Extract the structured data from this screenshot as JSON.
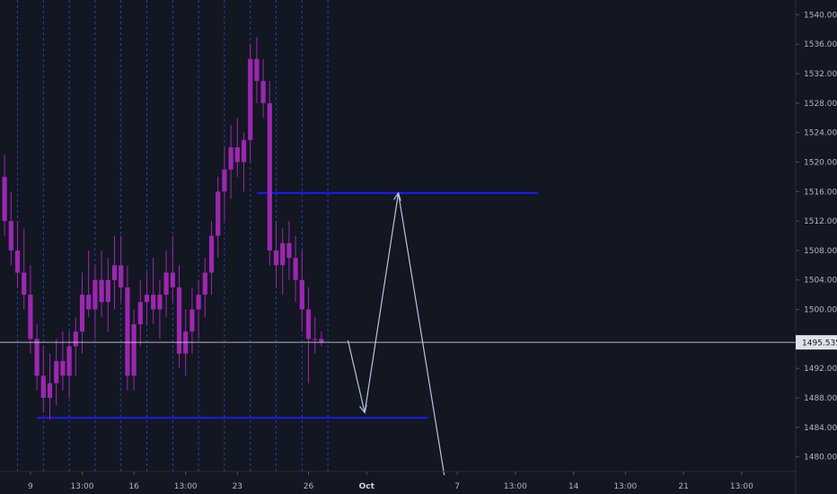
{
  "chart_data": {
    "type": "candlestick",
    "y_axis": {
      "range": [
        1478,
        1542
      ],
      "ticks": [
        "1540.000",
        "1536.000",
        "1532.000",
        "1528.000",
        "1524.000",
        "1520.000",
        "1516.000",
        "1512.000",
        "1508.000",
        "1504.000",
        "1500.000",
        "1496.000",
        "1492.000",
        "1488.000",
        "1484.000",
        "1480.000"
      ],
      "tick_values": [
        1540,
        1536,
        1532,
        1528,
        1524,
        1520,
        1516,
        1512,
        1508,
        1504,
        1500,
        1496,
        1492,
        1488,
        1484,
        1480
      ]
    },
    "x_axis": {
      "ticks": [
        {
          "label": "9",
          "bold": false,
          "slot": 4
        },
        {
          "label": "13:00",
          "bold": false,
          "slot": 12
        },
        {
          "label": "16",
          "bold": false,
          "slot": 20
        },
        {
          "label": "13:00",
          "bold": false,
          "slot": 28
        },
        {
          "label": "23",
          "bold": false,
          "slot": 36
        },
        {
          "label": "26",
          "bold": false,
          "slot": 47
        },
        {
          "label": "Oct",
          "bold": true,
          "slot": 56
        },
        {
          "label": "7",
          "bold": false,
          "slot": 70
        },
        {
          "label": "13:00",
          "bold": false,
          "slot": 79
        },
        {
          "label": "14",
          "bold": false,
          "slot": 88
        },
        {
          "label": "13:00",
          "bold": false,
          "slot": 96
        },
        {
          "label": "21",
          "bold": false,
          "slot": 105
        },
        {
          "label": "13:00",
          "bold": false,
          "slot": 114
        }
      ]
    },
    "current_price": "1495.535",
    "current_price_value": 1495.535,
    "colors": {
      "background": "#131722",
      "candle": "#9c27b0",
      "grid_dashed": "#2962ff",
      "level_line": "#1a1aff",
      "arrow": "#b8c4e0",
      "price_line": "#d1d4dc",
      "axis_text": "#b2b5be"
    },
    "horizontal_levels": [
      {
        "price": 1485.3,
        "from_slot": 5.5,
        "to_slot": 66
      },
      {
        "price": 1515.8,
        "from_slot": 39.5,
        "to_slot": 83
      }
    ],
    "projection_path": [
      {
        "slot": 53.6,
        "price": 1495.8
      },
      {
        "slot": 56.2,
        "price": 1486
      },
      {
        "slot": 61.4,
        "price": 1515.8
      },
      {
        "slot": 68.5,
        "price": 1477.5
      }
    ],
    "dashed_vertical_slots": [
      2,
      6,
      10,
      14,
      18,
      22,
      26,
      30,
      34,
      38,
      42,
      46,
      50
    ],
    "candles": [
      [
        1518,
        1521,
        1510,
        1512
      ],
      [
        1512,
        1516,
        1506,
        1508
      ],
      [
        1508,
        1512,
        1503,
        1505
      ],
      [
        1505,
        1511,
        1500,
        1502
      ],
      [
        1502,
        1506,
        1494,
        1496
      ],
      [
        1496,
        1498,
        1489,
        1491
      ],
      [
        1491,
        1495,
        1486,
        1488
      ],
      [
        1488,
        1494,
        1485,
        1490
      ],
      [
        1490,
        1496,
        1487,
        1493
      ],
      [
        1493,
        1497,
        1489,
        1491
      ],
      [
        1491,
        1497,
        1488,
        1495
      ],
      [
        1495,
        1499,
        1491,
        1497
      ],
      [
        1497,
        1505,
        1494,
        1502
      ],
      [
        1502,
        1508,
        1499,
        1500
      ],
      [
        1500,
        1506,
        1496,
        1504
      ],
      [
        1504,
        1508,
        1499,
        1501
      ],
      [
        1501,
        1507,
        1497,
        1504
      ],
      [
        1504,
        1510,
        1500,
        1506
      ],
      [
        1506,
        1510,
        1501,
        1503
      ],
      [
        1503,
        1506,
        1489,
        1491
      ],
      [
        1491,
        1500,
        1489,
        1498
      ],
      [
        1498,
        1504,
        1495,
        1501
      ],
      [
        1501,
        1505,
        1498,
        1502
      ],
      [
        1502,
        1507,
        1498,
        1500
      ],
      [
        1500,
        1504,
        1496,
        1502
      ],
      [
        1502,
        1508,
        1499,
        1505
      ],
      [
        1505,
        1510,
        1501,
        1503
      ],
      [
        1503,
        1506,
        1492,
        1494
      ],
      [
        1494,
        1500,
        1491,
        1497
      ],
      [
        1497,
        1503,
        1494,
        1500
      ],
      [
        1500,
        1504,
        1496,
        1502
      ],
      [
        1502,
        1507,
        1499,
        1505
      ],
      [
        1505,
        1512,
        1502,
        1510
      ],
      [
        1510,
        1518,
        1507,
        1516
      ],
      [
        1516,
        1522,
        1512,
        1519
      ],
      [
        1519,
        1525,
        1515,
        1522
      ],
      [
        1522,
        1526,
        1518,
        1520
      ],
      [
        1520,
        1524,
        1516,
        1523
      ],
      [
        1523,
        1536,
        1520,
        1534
      ],
      [
        1534,
        1537,
        1528,
        1531
      ],
      [
        1531,
        1534,
        1526,
        1528
      ],
      [
        1528,
        1531,
        1506,
        1508
      ],
      [
        1508,
        1512,
        1503,
        1506
      ],
      [
        1506,
        1511,
        1502,
        1509
      ],
      [
        1509,
        1512,
        1504,
        1507
      ],
      [
        1507,
        1510,
        1501,
        1504
      ],
      [
        1504,
        1508,
        1497,
        1500
      ],
      [
        1500,
        1503,
        1490,
        1496
      ],
      [
        1496,
        1499,
        1494,
        1496
      ],
      [
        1496,
        1497,
        1495,
        1495.5
      ]
    ]
  }
}
